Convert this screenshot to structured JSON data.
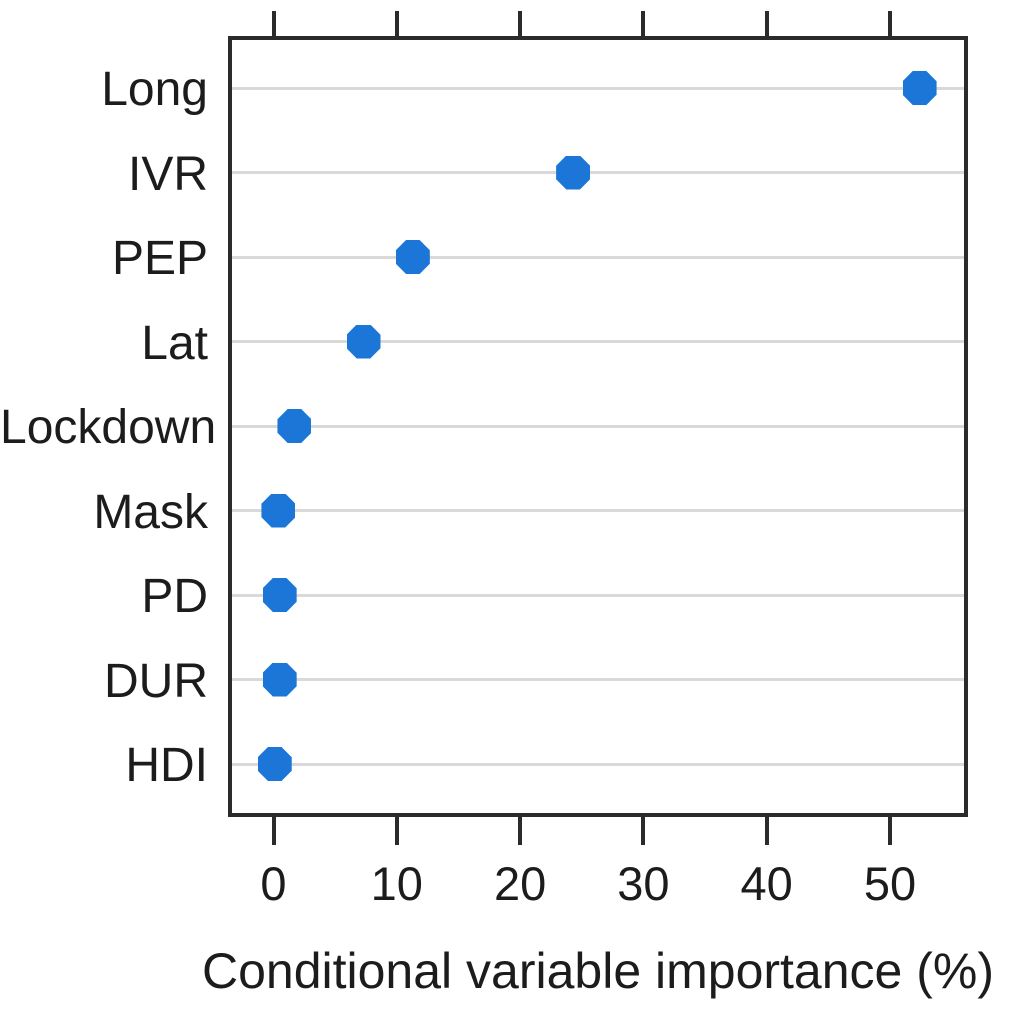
{
  "chart_data": {
    "type": "scatter",
    "variant": "cleveland-dot-plot",
    "orientation": "horizontal",
    "title": "",
    "xlabel": "Conditional variable importance (%)",
    "ylabel": "",
    "categories": [
      "Long",
      "IVR",
      "PEP",
      "Lat",
      "Lockdown",
      "Mask",
      "PD",
      "DUR",
      "HDI"
    ],
    "values": [
      52.4,
      24.3,
      11.3,
      7.3,
      1.7,
      0.4,
      0.5,
      0.5,
      0.1
    ],
    "x_ticks": [
      0,
      10,
      20,
      30,
      40,
      50
    ],
    "x_tick_labels": [
      "0",
      "10",
      "20",
      "30",
      "40",
      "50"
    ],
    "xlim": [
      -3.5,
      56.3
    ],
    "grid": "horizontal gridline per category",
    "legend": "none",
    "top_axis_ticks": true,
    "colors": {
      "marker": "#1b76d8",
      "gridline": "#d9d9d9",
      "frame": "#2b2b2b",
      "text": "#1c1c1c",
      "background": "#ffffff"
    },
    "marker_shape": "octagon"
  }
}
